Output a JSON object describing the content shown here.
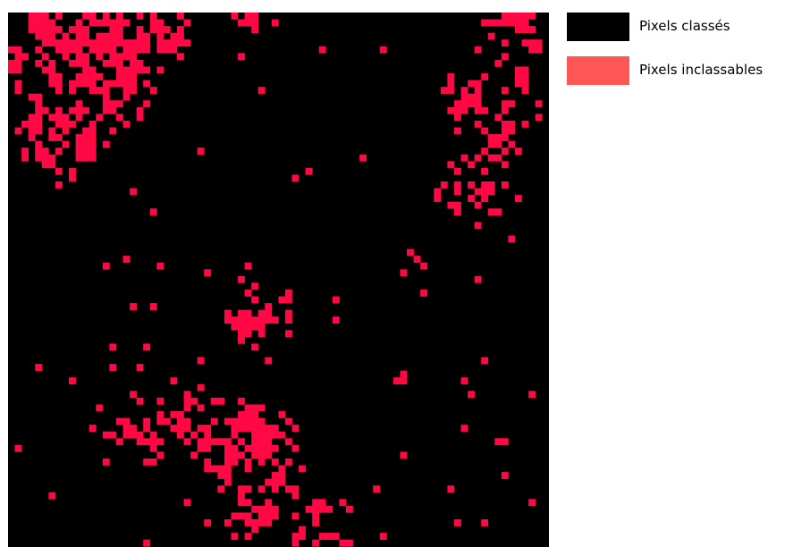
{
  "legend": [
    {
      "label": "Pixels classés",
      "color": "#000000"
    },
    {
      "label": "Pixels inclassables",
      "color": "#ff5555"
    }
  ],
  "map": {
    "background_color": "#000000",
    "unclassified_color": "#ff0844"
  }
}
